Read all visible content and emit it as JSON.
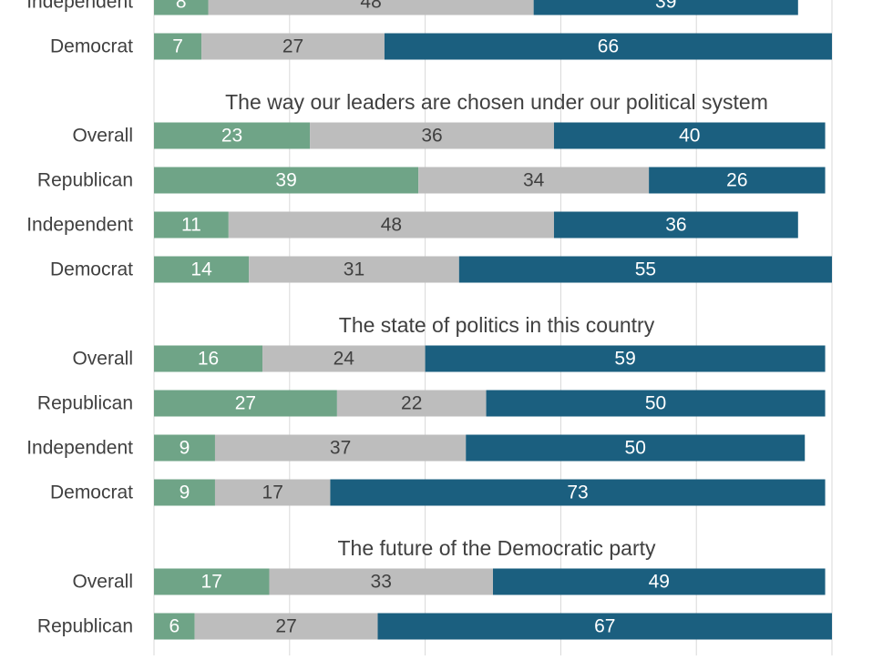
{
  "colors": {
    "series_1": "#6fa487",
    "series_2": "#bdbdbd",
    "series_3": "#1b5f7f",
    "grid": "#d9d9d9",
    "text": "#404040",
    "label_on_dark": "#ffffff",
    "label_on_light": "#404040"
  },
  "chart_data": {
    "type": "bar",
    "orientation": "horizontal",
    "stacked": true,
    "xlim": [
      0,
      100
    ],
    "grid": true,
    "groups": [
      {
        "title": "",
        "categories": [
          "Independent",
          "Democrat"
        ],
        "series": [
          {
            "values": [
              8,
              7
            ]
          },
          {
            "values": [
              48,
              27
            ]
          },
          {
            "values": [
              39,
              66
            ]
          }
        ]
      },
      {
        "title": "The way our leaders are chosen under our political system",
        "categories": [
          "Overall",
          "Republican",
          "Independent",
          "Democrat"
        ],
        "series": [
          {
            "values": [
              23,
              39,
              11,
              14
            ]
          },
          {
            "values": [
              36,
              34,
              48,
              31
            ]
          },
          {
            "values": [
              40,
              26,
              36,
              55
            ]
          }
        ]
      },
      {
        "title": "The state of politics in this country",
        "categories": [
          "Overall",
          "Republican",
          "Independent",
          "Democrat"
        ],
        "series": [
          {
            "values": [
              16,
              27,
              9,
              9
            ]
          },
          {
            "values": [
              24,
              22,
              37,
              17
            ]
          },
          {
            "values": [
              59,
              50,
              50,
              73
            ]
          }
        ]
      },
      {
        "title": "The future of the Democratic party",
        "categories": [
          "Overall",
          "Republican"
        ],
        "series": [
          {
            "values": [
              17,
              6
            ]
          },
          {
            "values": [
              33,
              27
            ]
          },
          {
            "values": [
              49,
              67
            ]
          }
        ]
      }
    ]
  }
}
